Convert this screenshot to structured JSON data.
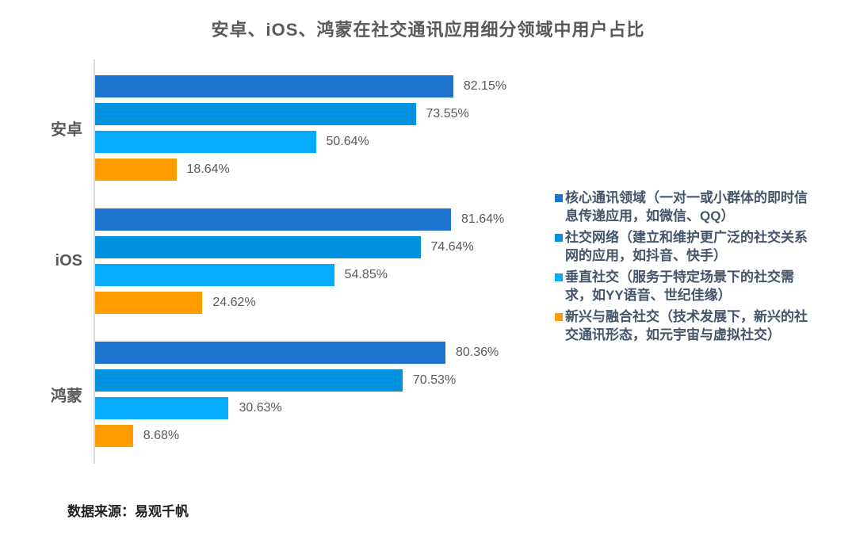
{
  "title": "安卓、iOS、鸿蒙在社交通讯应用细分领域中用户占比",
  "source": "数据来源：易观千帆",
  "chart_data": {
    "type": "bar",
    "orientation": "horizontal",
    "title": "安卓、iOS、鸿蒙在社交通讯应用细分领域中用户占比",
    "xlabel": "",
    "ylabel": "",
    "xlim": [
      0,
      100
    ],
    "grid": false,
    "legend_position": "right",
    "value_label_format": "0.00%",
    "categories": [
      "安卓",
      "iOS",
      "鸿蒙"
    ],
    "series": [
      {
        "key": "core-communication",
        "name": "核心通讯领域（一对一或小群体的即时信息传递应用，如微信、QQ）",
        "color": "#1d73ce",
        "values": [
          82.15,
          81.64,
          80.36
        ]
      },
      {
        "key": "social-network",
        "name": "社交网络（建立和维护更广泛的社交关系网的应用，如抖音、快手）",
        "color": "#0092de",
        "values": [
          73.55,
          74.64,
          70.53
        ]
      },
      {
        "key": "vertical-social",
        "name": "垂直社交（服务于特定场景下的社交需求，如YY语音、世纪佳缘）",
        "color": "#06acfb",
        "values": [
          50.64,
          54.85,
          30.63
        ]
      },
      {
        "key": "emerging-fusion-social",
        "name": "新兴与融合社交（技术发展下，新兴的社交通讯形态，如元宇宙与虚拟社交）",
        "color": "#ff9c00",
        "values": [
          18.64,
          24.62,
          8.68
        ]
      }
    ]
  },
  "colors": {
    "axis_line": "#d9d9d9",
    "title_text": "#595959",
    "category_text": "#595959",
    "value_text": "#595959",
    "legend_text": "#44546a",
    "source_text": "#1f1f1f",
    "background": "#ffffff"
  }
}
